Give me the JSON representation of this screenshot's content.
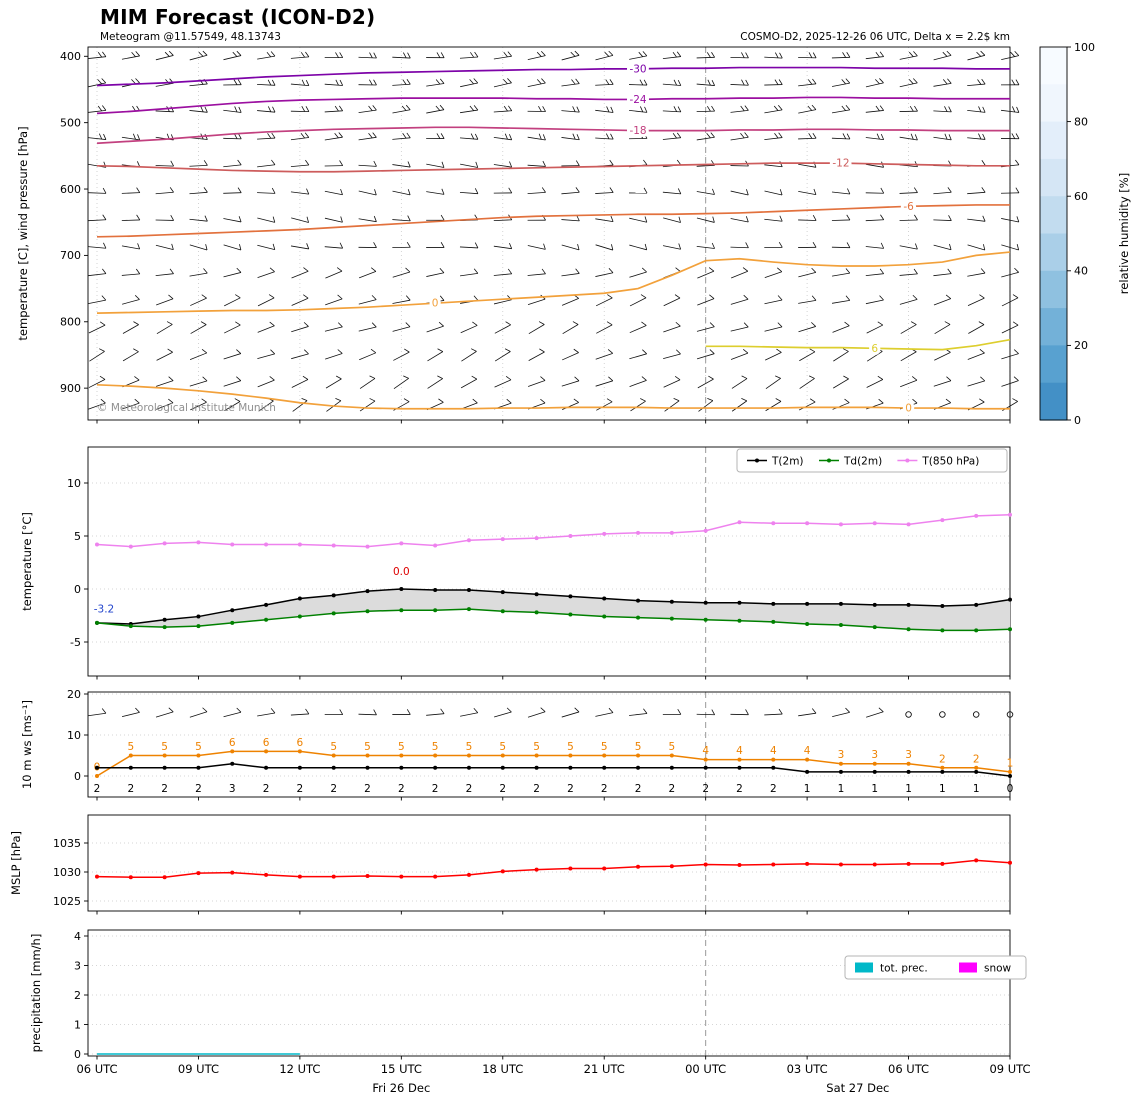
{
  "header": {
    "title": "MIM Forecast (ICON-D2)",
    "subtitle": "Meteogram @11.57549, 48.13743",
    "model_info": "COSMO-D2, 2025-12-26 06 UTC, Delta x = 2.2$ km",
    "copyright": "© Meteorological Institute Munich"
  },
  "x_axis": {
    "n_points": 28,
    "tick_indices": [
      0,
      3,
      6,
      9,
      12,
      15,
      18,
      21,
      24,
      27
    ],
    "tick_labels": [
      "06 UTC",
      "09 UTC",
      "12 UTC",
      "15 UTC",
      "18 UTC",
      "21 UTC",
      "00 UTC",
      "03 UTC",
      "06 UTC",
      "09 UTC"
    ],
    "day_labels": [
      {
        "text": "Fri 26 Dec",
        "x_index": 9
      },
      {
        "text": "Sat 27 Dec",
        "x_index": 22.5
      }
    ],
    "midnight_index": 18
  },
  "chart_data": [
    {
      "id": "upper_air",
      "type": "contour-barbs",
      "ylabel": "temperature [C], wind pressure [hPa]",
      "yticks": [
        400,
        500,
        600,
        700,
        800,
        900
      ],
      "ylim_hpa": [
        948,
        386
      ],
      "contours_degC": [
        {
          "label": "-30",
          "color": "#7d03a8",
          "label_index": 16,
          "start_index": 0,
          "pressures_hpa": [
            444,
            442,
            440,
            437,
            434,
            431,
            429,
            427,
            425,
            424,
            423,
            422,
            421,
            420,
            420,
            419,
            419,
            418,
            418,
            417,
            417,
            417,
            417,
            418,
            418,
            418,
            419,
            419
          ]
        },
        {
          "label": "-24",
          "color": "#9b0fa0",
          "label_index": 16,
          "start_index": 0,
          "pressures_hpa": [
            486,
            483,
            479,
            475,
            471,
            468,
            466,
            465,
            464,
            463,
            463,
            463,
            463,
            464,
            464,
            465,
            465,
            464,
            464,
            463,
            463,
            462,
            462,
            463,
            463,
            464,
            464,
            464
          ]
        },
        {
          "label": "-18",
          "color": "#c2407f",
          "label_index": 16,
          "start_index": 0,
          "pressures_hpa": [
            531,
            528,
            525,
            521,
            517,
            514,
            512,
            510,
            509,
            508,
            507,
            507,
            508,
            509,
            510,
            511,
            512,
            512,
            512,
            511,
            511,
            510,
            510,
            511,
            511,
            512,
            512,
            512
          ]
        },
        {
          "label": "-12",
          "color": "#cd5c5c",
          "label_index": 22,
          "start_index": 0,
          "pressures_hpa": [
            565,
            566,
            568,
            570,
            572,
            573,
            574,
            574,
            573,
            572,
            571,
            570,
            569,
            568,
            567,
            566,
            565,
            564,
            563,
            562,
            561,
            561,
            561,
            562,
            563,
            564,
            565,
            565
          ]
        },
        {
          "label": "-6",
          "color": "#e2713d",
          "label_index": 24,
          "start_index": 0,
          "pressures_hpa": [
            672,
            671,
            669,
            667,
            665,
            663,
            661,
            658,
            655,
            652,
            649,
            646,
            643,
            641,
            640,
            639,
            638,
            638,
            637,
            636,
            634,
            632,
            630,
            628,
            626,
            625,
            624,
            624
          ]
        },
        {
          "label": "0",
          "color": "#f2a13b",
          "label_index": 10,
          "start_index": 0,
          "pressures_hpa": [
            787,
            786,
            785,
            784,
            783,
            783,
            782,
            780,
            778,
            775,
            772,
            769,
            766,
            763,
            760,
            757,
            750,
            730,
            708,
            705,
            710,
            714,
            716,
            716,
            714,
            710,
            700,
            695
          ]
        },
        {
          "label": "6",
          "color": "#ddce2e",
          "label_index": 23,
          "start_index": 18,
          "pressures_hpa": [
            837,
            837,
            838,
            839,
            839,
            840,
            841,
            842,
            836,
            827
          ]
        },
        {
          "label": "0",
          "color": "#f2a13b",
          "label_index": 24,
          "start_index": 0,
          "pressures_hpa": [
            895,
            897,
            900,
            904,
            909,
            915,
            922,
            927,
            930,
            931,
            931,
            931,
            930,
            930,
            929,
            929,
            929,
            930,
            930,
            930,
            930,
            929,
            929,
            929,
            930,
            930,
            931,
            931
          ]
        }
      ],
      "wind_barbs": {
        "levels": [
          {
            "hpa": 402,
            "angle": 6,
            "ticks": 2
          },
          {
            "hpa": 443,
            "angle": 4,
            "ticks": 2
          },
          {
            "hpa": 483,
            "angle": 2,
            "ticks": 2
          },
          {
            "hpa": 524,
            "angle": 0,
            "ticks": 2
          },
          {
            "hpa": 565,
            "angle": -2,
            "ticks": 1
          },
          {
            "hpa": 606,
            "angle": -4,
            "ticks": 1
          },
          {
            "hpa": 647,
            "angle": -6,
            "ticks": 1
          },
          {
            "hpa": 688,
            "angle": -8,
            "ticks": 1
          },
          {
            "hpa": 729,
            "angle": 14,
            "ticks": 1
          },
          {
            "hpa": 770,
            "angle": 18,
            "ticks": 1
          },
          {
            "hpa": 811,
            "angle": 22,
            "ticks": 1
          },
          {
            "hpa": 852,
            "angle": 24,
            "ticks": 1
          },
          {
            "hpa": 893,
            "angle": 26,
            "ticks": 1
          },
          {
            "hpa": 927,
            "angle": 28,
            "ticks": 1
          }
        ]
      },
      "colorbar": {
        "label": "relative humidity [%]",
        "ticks": [
          0,
          20,
          40,
          60,
          80,
          100
        ],
        "colors_top_to_bottom": [
          "#f7fbff",
          "#f0f6fd",
          "#e3eefa",
          "#d5e6f5",
          "#c2dcef",
          "#aacfe8",
          "#8fc1e0",
          "#73b1d8",
          "#58a1d0",
          "#4390c6"
        ]
      }
    },
    {
      "id": "temperature",
      "type": "line",
      "ylabel": "temperature [°C]",
      "yticks": [
        10,
        5,
        0,
        -5
      ],
      "series": [
        {
          "name": "T(2m)",
          "color": "#000000",
          "unit": "°C",
          "values": [
            -3.2,
            -3.3,
            -2.9,
            -2.6,
            -2.0,
            -1.5,
            -0.9,
            -0.6,
            -0.2,
            0.0,
            -0.1,
            -0.1,
            -0.3,
            -0.5,
            -0.7,
            -0.9,
            -1.1,
            -1.2,
            -1.3,
            -1.3,
            -1.4,
            -1.4,
            -1.4,
            -1.5,
            -1.5,
            -1.6,
            -1.5,
            -1.0
          ]
        },
        {
          "name": "Td(2m)",
          "color": "#008000",
          "unit": "°C",
          "values": [
            -3.2,
            -3.5,
            -3.6,
            -3.5,
            -3.2,
            -2.9,
            -2.6,
            -2.3,
            -2.1,
            -2.0,
            -2.0,
            -1.9,
            -2.1,
            -2.2,
            -2.4,
            -2.6,
            -2.7,
            -2.8,
            -2.9,
            -3.0,
            -3.1,
            -3.3,
            -3.4,
            -3.6,
            -3.8,
            -3.9,
            -3.9,
            -3.8
          ]
        },
        {
          "name": "T(850 hPa)",
          "color": "#ee82ee",
          "unit": "°C",
          "values": [
            4.2,
            4.0,
            4.3,
            4.4,
            4.2,
            4.2,
            4.2,
            4.1,
            4.0,
            4.3,
            4.1,
            4.6,
            4.7,
            4.8,
            5.0,
            5.2,
            5.3,
            5.3,
            5.5,
            6.3,
            6.2,
            6.2,
            6.1,
            6.2,
            6.1,
            6.5,
            6.9,
            7.0
          ]
        }
      ],
      "legend": [
        "T(2m)",
        "Td(2m)",
        "T(850 hPa)"
      ],
      "annotations": [
        {
          "text": "-3.2",
          "color": "#2244cc",
          "x_index": 0,
          "value": -2.2,
          "dx": 7
        },
        {
          "text": "0.0",
          "color": "#dd0000",
          "x_index": 9,
          "value": 1.3,
          "dx": 0
        }
      ]
    },
    {
      "id": "wind",
      "type": "line",
      "ylabel": "10 m ws [ms⁻¹]",
      "yticks": [
        0,
        10,
        20
      ],
      "series": [
        {
          "name": "gust",
          "color": "#ee8200",
          "unit": "m/s",
          "values": [
            0,
            5,
            5,
            5,
            6,
            6,
            6,
            5,
            5,
            5,
            5,
            5,
            5,
            5,
            5,
            5,
            5,
            5,
            4,
            4,
            4,
            4,
            3,
            3,
            3,
            2,
            2,
            1
          ],
          "labels": "above"
        },
        {
          "name": "mean",
          "color": "#000000",
          "unit": "m/s",
          "values": [
            2,
            2,
            2,
            2,
            3,
            2,
            2,
            2,
            2,
            2,
            2,
            2,
            2,
            2,
            2,
            2,
            2,
            2,
            2,
            2,
            2,
            1,
            1,
            1,
            1,
            1,
            1,
            0
          ],
          "labels": "bottom"
        }
      ],
      "barb_row": {
        "value": 15,
        "angle_base": 8,
        "calm_from_index": 24
      }
    },
    {
      "id": "mslp",
      "type": "line",
      "ylabel": "MSLP [hPa]",
      "yticks": [
        1025,
        1030,
        1035
      ],
      "series": [
        {
          "name": "MSLP",
          "color": "#ff0000",
          "unit": "hPa",
          "values": [
            1029.2,
            1029.1,
            1029.1,
            1029.8,
            1029.9,
            1029.5,
            1029.2,
            1029.2,
            1029.3,
            1029.2,
            1029.2,
            1029.5,
            1030.1,
            1030.4,
            1030.6,
            1030.6,
            1030.9,
            1031.0,
            1031.3,
            1031.2,
            1031.3,
            1031.4,
            1031.3,
            1031.3,
            1031.4,
            1031.4,
            1032.0,
            1031.6
          ]
        }
      ]
    },
    {
      "id": "precipitation",
      "type": "line",
      "ylabel": "precipitation [mm/h]",
      "yticks": [
        0,
        1,
        2,
        3,
        4
      ],
      "series": [
        {
          "name": "tot. prec.",
          "color": "#00b8c8",
          "unit": "mm/h",
          "values": [
            0,
            0,
            0,
            0,
            0,
            0,
            0,
            0,
            0,
            0,
            0,
            0,
            0,
            0,
            0,
            0,
            0,
            0,
            0,
            0,
            0,
            0,
            0,
            0,
            0,
            0,
            0,
            0
          ],
          "range": [
            0,
            6
          ]
        },
        {
          "name": "snow",
          "color": "#ff00ff",
          "unit": "mm/h",
          "values": [
            0,
            0,
            0,
            0,
            0,
            0,
            0,
            0,
            0,
            0,
            0,
            0,
            0,
            0,
            0,
            0,
            0,
            0,
            0,
            0,
            0,
            0,
            0,
            0,
            0,
            0,
            0,
            0
          ],
          "hidden": true
        }
      ],
      "legend": [
        "tot. prec.",
        "snow"
      ]
    }
  ]
}
